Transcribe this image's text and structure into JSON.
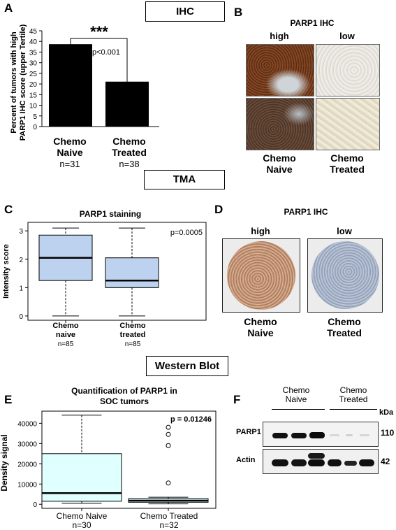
{
  "section_labels": {
    "ihc": "IHC",
    "tma": "TMA",
    "western": "Western Blot"
  },
  "panels": {
    "a": "A",
    "b": "B",
    "c": "C",
    "d": "D",
    "e": "E",
    "f": "F"
  },
  "panel_a": {
    "ylabel_line1": "Percent of tumors with high",
    "ylabel_line2": "PARP1 IHC score (upper Tertile)",
    "significance": "***",
    "pvalue": "p<0.001",
    "groups": [
      {
        "line1": "Chemo",
        "line2": "Naive",
        "n": "n=31"
      },
      {
        "line1": "Chemo",
        "line2": "Treated",
        "n": "n=38"
      }
    ]
  },
  "panel_b": {
    "title": "PARP1 IHC",
    "col_high": "high",
    "col_low": "low",
    "groups": [
      {
        "line1": "Chemo",
        "line2": "Naive"
      },
      {
        "line1": "Chemo",
        "line2": "Treated"
      }
    ]
  },
  "panel_c": {
    "title": "PARP1 staining",
    "ylabel": "Intensity score",
    "pvalue": "p=0.0005",
    "groups": [
      {
        "line1": "Chemo",
        "line2": "naive",
        "n": "n=85"
      },
      {
        "line1": "Chemo",
        "line2": "treated",
        "n": "n=85"
      }
    ]
  },
  "panel_d": {
    "title": "PARP1 IHC",
    "col_high": "high",
    "col_low": "low",
    "groups": [
      {
        "line1": "Chemo",
        "line2": "Naive"
      },
      {
        "line1": "Chemo",
        "line2": "Treated"
      }
    ]
  },
  "panel_e": {
    "title_line1": "Quantification of PARP1 in",
    "title_line2": "SOC tumors",
    "ylabel": "Density signal",
    "pvalue": "p = 0.01246",
    "groups": [
      {
        "label": "Chemo Naive",
        "n": "n=30"
      },
      {
        "label": "Chemo Treated",
        "n": "n=32"
      }
    ]
  },
  "panel_f": {
    "group1_line1": "Chemo",
    "group1_line2": "Naive",
    "group2_line1": "Chemo",
    "group2_line2": "Treated",
    "unit": "kDa",
    "rows": [
      {
        "label": "PARP1",
        "kda": "110"
      },
      {
        "label": "Actin",
        "kda": "42"
      }
    ]
  },
  "chart_data": [
    {
      "type": "bar",
      "categories": [
        "Chemo Naive",
        "Chemo Treated"
      ],
      "values": [
        38.7,
        21.1
      ],
      "ylabel": "Percent of tumors with high PARP1 IHC score (upper Tertile)",
      "ylim": [
        0,
        45
      ],
      "yticks": [
        0,
        5,
        10,
        15,
        20,
        25,
        30,
        35,
        40,
        45
      ],
      "bar_color": "#000000"
    },
    {
      "type": "box",
      "title": "PARP1 staining",
      "ylabel": "Intensity score",
      "categories": [
        "Chemo naive",
        "Chemo treated"
      ],
      "ylim": [
        -0.15,
        3.3
      ],
      "yticks": [
        0,
        1,
        2,
        3
      ],
      "boxes": [
        {
          "min": 0,
          "q1": 1.25,
          "median": 2.05,
          "q3": 2.85,
          "max": 3.1
        },
        {
          "min": 0,
          "q1": 1.0,
          "median": 1.25,
          "q3": 2.05,
          "max": 3.1
        }
      ],
      "fill": "#bcd2ee"
    },
    {
      "type": "box",
      "title": "Quantification of PARP1 in SOC tumors",
      "ylabel": "Density signal",
      "categories": [
        "Chemo Naive",
        "Chemo Treated"
      ],
      "ylim": [
        -2000,
        46000
      ],
      "yticks": [
        0,
        10000,
        20000,
        30000,
        40000
      ],
      "boxes": [
        {
          "min": 500,
          "q1": 1500,
          "median": 5500,
          "q3": 25000,
          "max": 44000,
          "outliers": []
        },
        {
          "min": 200,
          "q1": 1000,
          "median": 1800,
          "q3": 2800,
          "max": 3500,
          "outliers": [
            10500,
            29000,
            34500,
            38000
          ]
        }
      ],
      "fill": "#e0ffff"
    }
  ]
}
